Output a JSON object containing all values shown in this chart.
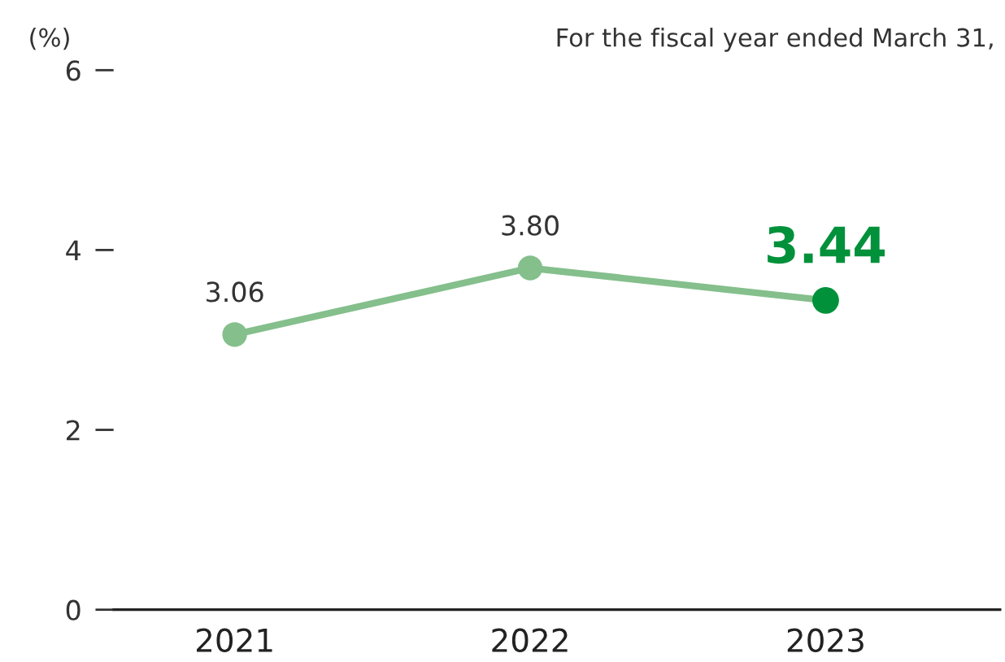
{
  "chart_data": {
    "type": "line",
    "ylabel": "(%)",
    "annotations": [
      "For the fiscal year ended March 31,"
    ],
    "categories": [
      "2021",
      "2022",
      "2023"
    ],
    "series": [
      {
        "color": "#84bf8c",
        "colors": [
          "#84bf8c",
          "#84bf8c",
          "#00913a"
        ],
        "values": [
          3.06,
          3.8,
          3.44
        ],
        "value_labels": [
          "3.06",
          "3.80",
          "3.44"
        ]
      }
    ],
    "ylim": [
      0,
      6
    ],
    "yticks": [
      0,
      2,
      4,
      6
    ],
    "marker": "circle",
    "line_style": "solid",
    "grid": false
  }
}
